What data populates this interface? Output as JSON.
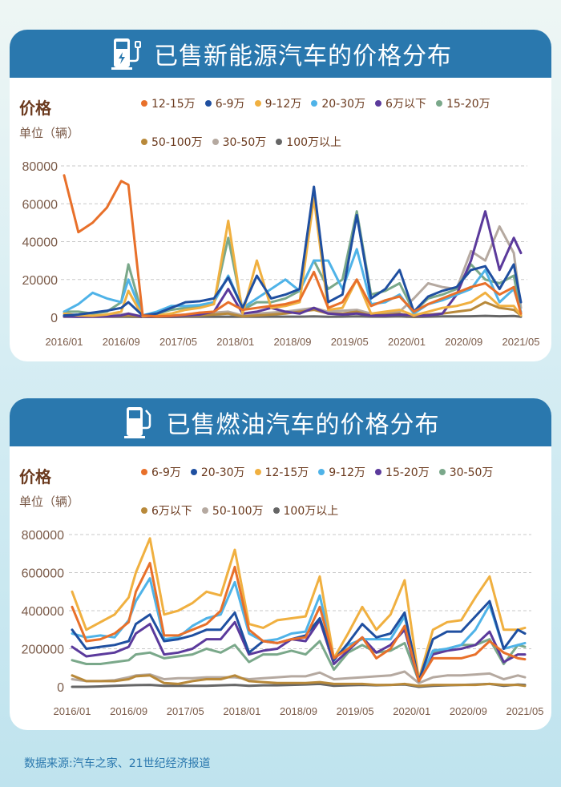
{
  "footer": {
    "source": "数据来源:汽车之家、21世纪经济报道"
  },
  "watermark": "21世纪经济报道",
  "charts": [
    {
      "title": "已售新能源汽车的价格分布",
      "icon": "ev-charger-icon",
      "label_price": "价格",
      "label_unit": "单位（辆）"
    },
    {
      "title": "已售燃油汽车的价格分布",
      "icon": "fuel-pump-icon",
      "label_price": "价格",
      "label_unit": "单位（辆）"
    }
  ],
  "colors": {
    "header": "#2a78ae",
    "title_brown": "#6b3a1e"
  },
  "chart_data": [
    {
      "type": "line",
      "title": "已售新能源汽车的价格分布",
      "ylabel": "单位（辆）",
      "ylim": [
        0,
        80000
      ],
      "yticks": [
        0,
        20000,
        40000,
        60000,
        80000
      ],
      "xticks": [
        "2016/01",
        "2016/09",
        "2017/05",
        "2018/01",
        "2018/09",
        "2019/05",
        "2020/01",
        "2020/09",
        "2021/05"
      ],
      "grid": "horizontal dashed",
      "legend": "top",
      "x": [
        "2016/01",
        "2016/03",
        "2016/05",
        "2016/07",
        "2016/09",
        "2016/10",
        "2016/12",
        "2017/02",
        "2017/04",
        "2017/06",
        "2017/08",
        "2017/10",
        "2017/12",
        "2018/02",
        "2018/04",
        "2018/06",
        "2018/08",
        "2018/10",
        "2018/12",
        "2019/02",
        "2019/04",
        "2019/06",
        "2019/08",
        "2019/10",
        "2019/12",
        "2020/02",
        "2020/04",
        "2020/06",
        "2020/08",
        "2020/10",
        "2020/12",
        "2021/02",
        "2021/04",
        "2021/05"
      ],
      "series": [
        {
          "name": "12-15万",
          "color": "#e8702a",
          "values": [
            75000,
            45000,
            50000,
            58000,
            72000,
            70000,
            1000,
            500,
            800,
            1500,
            2500,
            3000,
            8000,
            4000,
            5000,
            6000,
            7000,
            9000,
            24000,
            5000,
            8000,
            20000,
            6000,
            9000,
            11000,
            3000,
            7000,
            10000,
            13000,
            16000,
            18000,
            12000,
            16000,
            2000
          ]
        },
        {
          "name": "6-9万",
          "color": "#1f4fa0",
          "values": [
            1000,
            1500,
            2500,
            3500,
            5000,
            8000,
            1000,
            2000,
            5000,
            8000,
            8500,
            10000,
            21000,
            5000,
            22000,
            10000,
            12000,
            15000,
            69000,
            8000,
            12000,
            54000,
            10000,
            15000,
            25000,
            3000,
            11000,
            14000,
            16000,
            25000,
            27000,
            15000,
            28000,
            8000
          ]
        },
        {
          "name": "9-12万",
          "color": "#f0b040",
          "values": [
            2000,
            1000,
            800,
            1500,
            3000,
            14000,
            500,
            1000,
            2000,
            4000,
            5000,
            7000,
            51000,
            2000,
            30000,
            5000,
            6000,
            8000,
            63000,
            4000,
            5000,
            20000,
            2000,
            3000,
            4000,
            1000,
            3000,
            5000,
            6000,
            8000,
            13000,
            6000,
            6000,
            1000
          ]
        },
        {
          "name": "20-30万",
          "color": "#4fb3e8",
          "values": [
            3000,
            7000,
            13000,
            10000,
            8000,
            20000,
            1000,
            3000,
            6000,
            6000,
            6500,
            8000,
            22000,
            5000,
            10000,
            15000,
            20000,
            14000,
            30000,
            30000,
            15000,
            36000,
            7000,
            8000,
            12000,
            2000,
            7000,
            9000,
            12000,
            15000,
            25000,
            8000,
            15000,
            3000
          ]
        },
        {
          "name": "6万以下",
          "color": "#5b3a9c",
          "values": [
            500,
            300,
            300,
            500,
            1000,
            2000,
            300,
            500,
            500,
            1000,
            1500,
            3000,
            15000,
            2000,
            3000,
            5000,
            3000,
            2000,
            5000,
            2000,
            1500,
            2000,
            1000,
            1000,
            1500,
            1000,
            1000,
            2000,
            12000,
            30000,
            56000,
            25000,
            42000,
            34000
          ]
        },
        {
          "name": "15-20万",
          "color": "#7aa88a",
          "values": [
            3000,
            3000,
            2000,
            3000,
            8000,
            28000,
            1000,
            2000,
            4000,
            5000,
            6000,
            8000,
            42000,
            4000,
            8000,
            8000,
            10000,
            14000,
            30000,
            15000,
            20000,
            56000,
            12000,
            14000,
            18000,
            3000,
            10000,
            12000,
            15000,
            28000,
            20000,
            18000,
            22000,
            2000
          ]
        },
        {
          "name": "50-100万",
          "color": "#b8893a",
          "values": [
            500,
            500,
            500,
            500,
            800,
            1000,
            300,
            300,
            500,
            800,
            1000,
            1500,
            2000,
            500,
            1000,
            1500,
            2000,
            3000,
            4000,
            2000,
            2000,
            3000,
            1000,
            1500,
            2000,
            500,
            1500,
            2000,
            3000,
            4000,
            8000,
            5000,
            4000,
            1000
          ]
        },
        {
          "name": "30-50万",
          "color": "#b5a9a0",
          "values": [
            1000,
            1000,
            1000,
            1000,
            1500,
            2000,
            500,
            500,
            1000,
            1500,
            2000,
            2500,
            3000,
            1000,
            2000,
            2500,
            3000,
            4000,
            5000,
            3000,
            3500,
            4000,
            2000,
            2500,
            3000,
            10000,
            18000,
            16000,
            15000,
            35000,
            30000,
            48000,
            34000,
            5000
          ]
        },
        {
          "name": "100万以上",
          "color": "#666666",
          "values": [
            300,
            300,
            300,
            300,
            300,
            300,
            200,
            200,
            200,
            300,
            300,
            300,
            400,
            300,
            300,
            400,
            400,
            400,
            500,
            300,
            400,
            500,
            400,
            400,
            500,
            200,
            400,
            500,
            500,
            600,
            800,
            600,
            700,
            300
          ]
        }
      ]
    },
    {
      "type": "line",
      "title": "已售燃油汽车的价格分布",
      "ylabel": "单位（辆）",
      "ylim": [
        0,
        800000
      ],
      "yticks": [
        0,
        200000,
        400000,
        600000,
        800000
      ],
      "xticks": [
        "2016/01",
        "2016/09",
        "2017/05",
        "2018/01",
        "2018/09",
        "2019/05",
        "2020/01",
        "2020/09",
        "2021/05"
      ],
      "grid": "horizontal dashed",
      "legend": "top",
      "x": [
        "2016/01",
        "2016/03",
        "2016/05",
        "2016/07",
        "2016/09",
        "2016/10",
        "2016/12",
        "2017/02",
        "2017/04",
        "2017/06",
        "2017/08",
        "2017/10",
        "2017/12",
        "2018/02",
        "2018/04",
        "2018/06",
        "2018/08",
        "2018/10",
        "2018/12",
        "2019/02",
        "2019/04",
        "2019/06",
        "2019/08",
        "2019/10",
        "2019/12",
        "2020/02",
        "2020/04",
        "2020/06",
        "2020/08",
        "2020/10",
        "2020/12",
        "2021/02",
        "2021/04",
        "2021/05"
      ],
      "series": [
        {
          "name": "6-9万",
          "color": "#e8702a",
          "values": [
            420000,
            240000,
            250000,
            280000,
            340000,
            500000,
            650000,
            270000,
            270000,
            300000,
            330000,
            400000,
            630000,
            300000,
            240000,
            230000,
            250000,
            260000,
            420000,
            150000,
            200000,
            260000,
            150000,
            200000,
            320000,
            30000,
            150000,
            150000,
            150000,
            170000,
            240000,
            180000,
            150000,
            145000
          ]
        },
        {
          "name": "20-30万",
          "color": "#1f4fa0",
          "values": [
            300000,
            200000,
            210000,
            220000,
            240000,
            330000,
            380000,
            240000,
            250000,
            270000,
            300000,
            300000,
            390000,
            180000,
            240000,
            230000,
            250000,
            270000,
            360000,
            140000,
            230000,
            330000,
            260000,
            280000,
            390000,
            30000,
            250000,
            290000,
            290000,
            370000,
            450000,
            200000,
            300000,
            280000
          ]
        },
        {
          "name": "12-15万",
          "color": "#f0b040",
          "values": [
            500000,
            300000,
            340000,
            380000,
            470000,
            600000,
            780000,
            380000,
            400000,
            440000,
            500000,
            480000,
            720000,
            330000,
            310000,
            350000,
            360000,
            370000,
            580000,
            150000,
            280000,
            420000,
            300000,
            380000,
            560000,
            40000,
            300000,
            340000,
            350000,
            470000,
            580000,
            300000,
            300000,
            310000
          ]
        },
        {
          "name": "9-12万",
          "color": "#4fb3e8",
          "values": [
            280000,
            260000,
            270000,
            260000,
            350000,
            450000,
            570000,
            250000,
            260000,
            320000,
            360000,
            380000,
            550000,
            280000,
            240000,
            250000,
            280000,
            290000,
            480000,
            150000,
            220000,
            250000,
            250000,
            250000,
            370000,
            30000,
            190000,
            200000,
            220000,
            300000,
            430000,
            200000,
            220000,
            230000
          ]
        },
        {
          "name": "15-20万",
          "color": "#5b3a9c",
          "values": [
            210000,
            160000,
            170000,
            180000,
            210000,
            280000,
            330000,
            170000,
            180000,
            200000,
            250000,
            250000,
            340000,
            170000,
            190000,
            200000,
            250000,
            240000,
            350000,
            120000,
            190000,
            260000,
            180000,
            220000,
            300000,
            30000,
            170000,
            190000,
            200000,
            220000,
            290000,
            130000,
            170000,
            170000
          ]
        },
        {
          "name": "30-50万",
          "color": "#7aa88a",
          "values": [
            140000,
            120000,
            120000,
            130000,
            140000,
            170000,
            180000,
            150000,
            160000,
            170000,
            200000,
            180000,
            220000,
            130000,
            170000,
            170000,
            190000,
            170000,
            240000,
            90000,
            180000,
            220000,
            180000,
            190000,
            230000,
            30000,
            180000,
            200000,
            220000,
            220000,
            250000,
            120000,
            220000,
            210000
          ]
        },
        {
          "name": "6万以下",
          "color": "#b8893a",
          "values": [
            60000,
            30000,
            30000,
            30000,
            40000,
            55000,
            60000,
            20000,
            15000,
            30000,
            40000,
            40000,
            60000,
            30000,
            25000,
            20000,
            20000,
            20000,
            25000,
            15000,
            15000,
            15000,
            10000,
            10000,
            15000,
            5000,
            10000,
            10000,
            10000,
            10000,
            15000,
            10000,
            10000,
            5000
          ]
        },
        {
          "name": "50-100万",
          "color": "#b5a9a0",
          "values": [
            40000,
            30000,
            30000,
            35000,
            50000,
            60000,
            65000,
            40000,
            45000,
            45000,
            50000,
            50000,
            50000,
            40000,
            45000,
            50000,
            55000,
            55000,
            75000,
            40000,
            45000,
            50000,
            55000,
            60000,
            80000,
            20000,
            50000,
            60000,
            60000,
            65000,
            70000,
            40000,
            60000,
            50000
          ]
        },
        {
          "name": "100万以上",
          "color": "#666666",
          "values": [
            0,
            0,
            2000,
            5000,
            8000,
            9000,
            10000,
            5000,
            5000,
            5000,
            5000,
            8000,
            10000,
            5000,
            8000,
            8000,
            10000,
            12000,
            15000,
            5000,
            8000,
            10000,
            8000,
            10000,
            12000,
            0,
            5000,
            8000,
            10000,
            12000,
            15000,
            5000,
            12000,
            10000
          ]
        }
      ]
    }
  ]
}
